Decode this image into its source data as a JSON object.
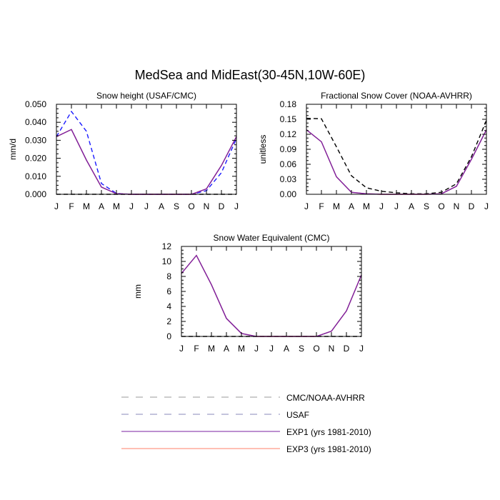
{
  "title": "MedSea and MidEast(30-45N,10W-60E)",
  "colors": {
    "cmc_noaa": "#000000",
    "usaf": "#1a1aff",
    "exp1": "#7a1fa0",
    "exp3": "#ff7f6a",
    "axis": "#000000"
  },
  "legend": [
    {
      "label": "CMC/NOAA-AVHRR",
      "style": "dashed",
      "color_key": "cmc_noaa"
    },
    {
      "label": "USAF",
      "style": "dashed",
      "color_key": "usaf"
    },
    {
      "label": "EXP1 (yrs 1981-2010)",
      "style": "solid",
      "color_key": "exp1"
    },
    {
      "label": "EXP3 (yrs 1981-2010)",
      "style": "solid",
      "color_key": "exp3"
    }
  ],
  "chart_data": [
    {
      "type": "line",
      "title": "Snow height (USAF/CMC)",
      "ylabel": "mm/d",
      "xlabel": "",
      "categories": [
        "J",
        "F",
        "M",
        "A",
        "M",
        "J",
        "J",
        "A",
        "S",
        "O",
        "N",
        "D",
        "J"
      ],
      "ylim": [
        0,
        0.05
      ],
      "yticks": [
        "0.000",
        "0.010",
        "0.020",
        "0.030",
        "0.040",
        "0.050"
      ],
      "series": [
        {
          "name": "CMC/NOAA-AVHRR",
          "style": "dashed",
          "color_key": "cmc_noaa",
          "values": [
            0,
            0,
            0,
            0,
            0,
            0,
            0,
            0,
            0,
            0,
            0,
            0,
            0
          ]
        },
        {
          "name": "USAF",
          "style": "dashed",
          "color_key": "usaf",
          "values": [
            0.032,
            0.046,
            0.035,
            0.006,
            0.0005,
            0,
            0,
            0,
            0,
            0,
            0.002,
            0.012,
            0.031
          ]
        },
        {
          "name": "EXP3 (yrs 1981-2010)",
          "style": "solid",
          "color_key": "exp3",
          "values": [
            0.032,
            0.036,
            0.019,
            0.004,
            0.0003,
            0,
            0,
            0,
            0,
            0,
            0.003,
            0.016,
            0.032
          ]
        },
        {
          "name": "EXP1 (yrs 1981-2010)",
          "style": "solid",
          "color_key": "exp1",
          "values": [
            0.032,
            0.036,
            0.019,
            0.004,
            0.0003,
            0,
            0,
            0,
            0,
            0,
            0.003,
            0.016,
            0.032
          ]
        }
      ]
    },
    {
      "type": "line",
      "title": "Fractional Snow Cover (NOAA-AVHRR)",
      "ylabel": "unitless",
      "xlabel": "",
      "categories": [
        "J",
        "F",
        "M",
        "A",
        "M",
        "J",
        "J",
        "A",
        "S",
        "O",
        "N",
        "D",
        "J"
      ],
      "ylim": [
        0,
        0.18
      ],
      "yticks": [
        "0.00",
        "0.03",
        "0.06",
        "0.09",
        "0.12",
        "0.15",
        "0.18"
      ],
      "series": [
        {
          "name": "CMC/NOAA-AVHRR",
          "style": "dashed",
          "color_key": "cmc_noaa",
          "values": [
            0.152,
            0.151,
            0.095,
            0.037,
            0.013,
            0.006,
            0.003,
            0.001,
            0.001,
            0.004,
            0.021,
            0.075,
            0.148
          ]
        },
        {
          "name": "EXP3 (yrs 1981-2010)",
          "style": "solid",
          "color_key": "exp3",
          "values": [
            0.129,
            0.105,
            0.035,
            0.004,
            0.001,
            0,
            0,
            0,
            0,
            0.001,
            0.016,
            0.07,
            0.129
          ]
        },
        {
          "name": "EXP1 (yrs 1981-2010)",
          "style": "solid",
          "color_key": "exp1",
          "values": [
            0.129,
            0.105,
            0.035,
            0.004,
            0.001,
            0,
            0,
            0,
            0,
            0.001,
            0.016,
            0.07,
            0.129
          ]
        }
      ]
    },
    {
      "type": "line",
      "title": "Snow Water Equivalent (CMC)",
      "ylabel": "mm",
      "xlabel": "",
      "categories": [
        "J",
        "F",
        "M",
        "A",
        "M",
        "J",
        "J",
        "A",
        "S",
        "O",
        "N",
        "D",
        "J"
      ],
      "ylim": [
        0,
        12
      ],
      "yticks": [
        "0",
        "2",
        "4",
        "6",
        "8",
        "10",
        "12"
      ],
      "series": [
        {
          "name": "CMC/NOAA-AVHRR",
          "style": "dashed",
          "color_key": "cmc_noaa",
          "values": [
            0,
            0,
            0,
            0,
            0,
            0,
            0,
            0,
            0,
            0,
            0,
            0,
            0
          ]
        },
        {
          "name": "EXP3 (yrs 1981-2010)",
          "style": "solid",
          "color_key": "exp3",
          "values": [
            8.4,
            10.8,
            6.9,
            2.4,
            0.4,
            0,
            0,
            0,
            0,
            0,
            0.7,
            3.4,
            8.2
          ]
        },
        {
          "name": "EXP1 (yrs 1981-2010)",
          "style": "solid",
          "color_key": "exp1",
          "values": [
            8.4,
            10.8,
            6.9,
            2.4,
            0.4,
            0,
            0,
            0,
            0,
            0,
            0.7,
            3.4,
            8.2
          ]
        }
      ]
    }
  ]
}
